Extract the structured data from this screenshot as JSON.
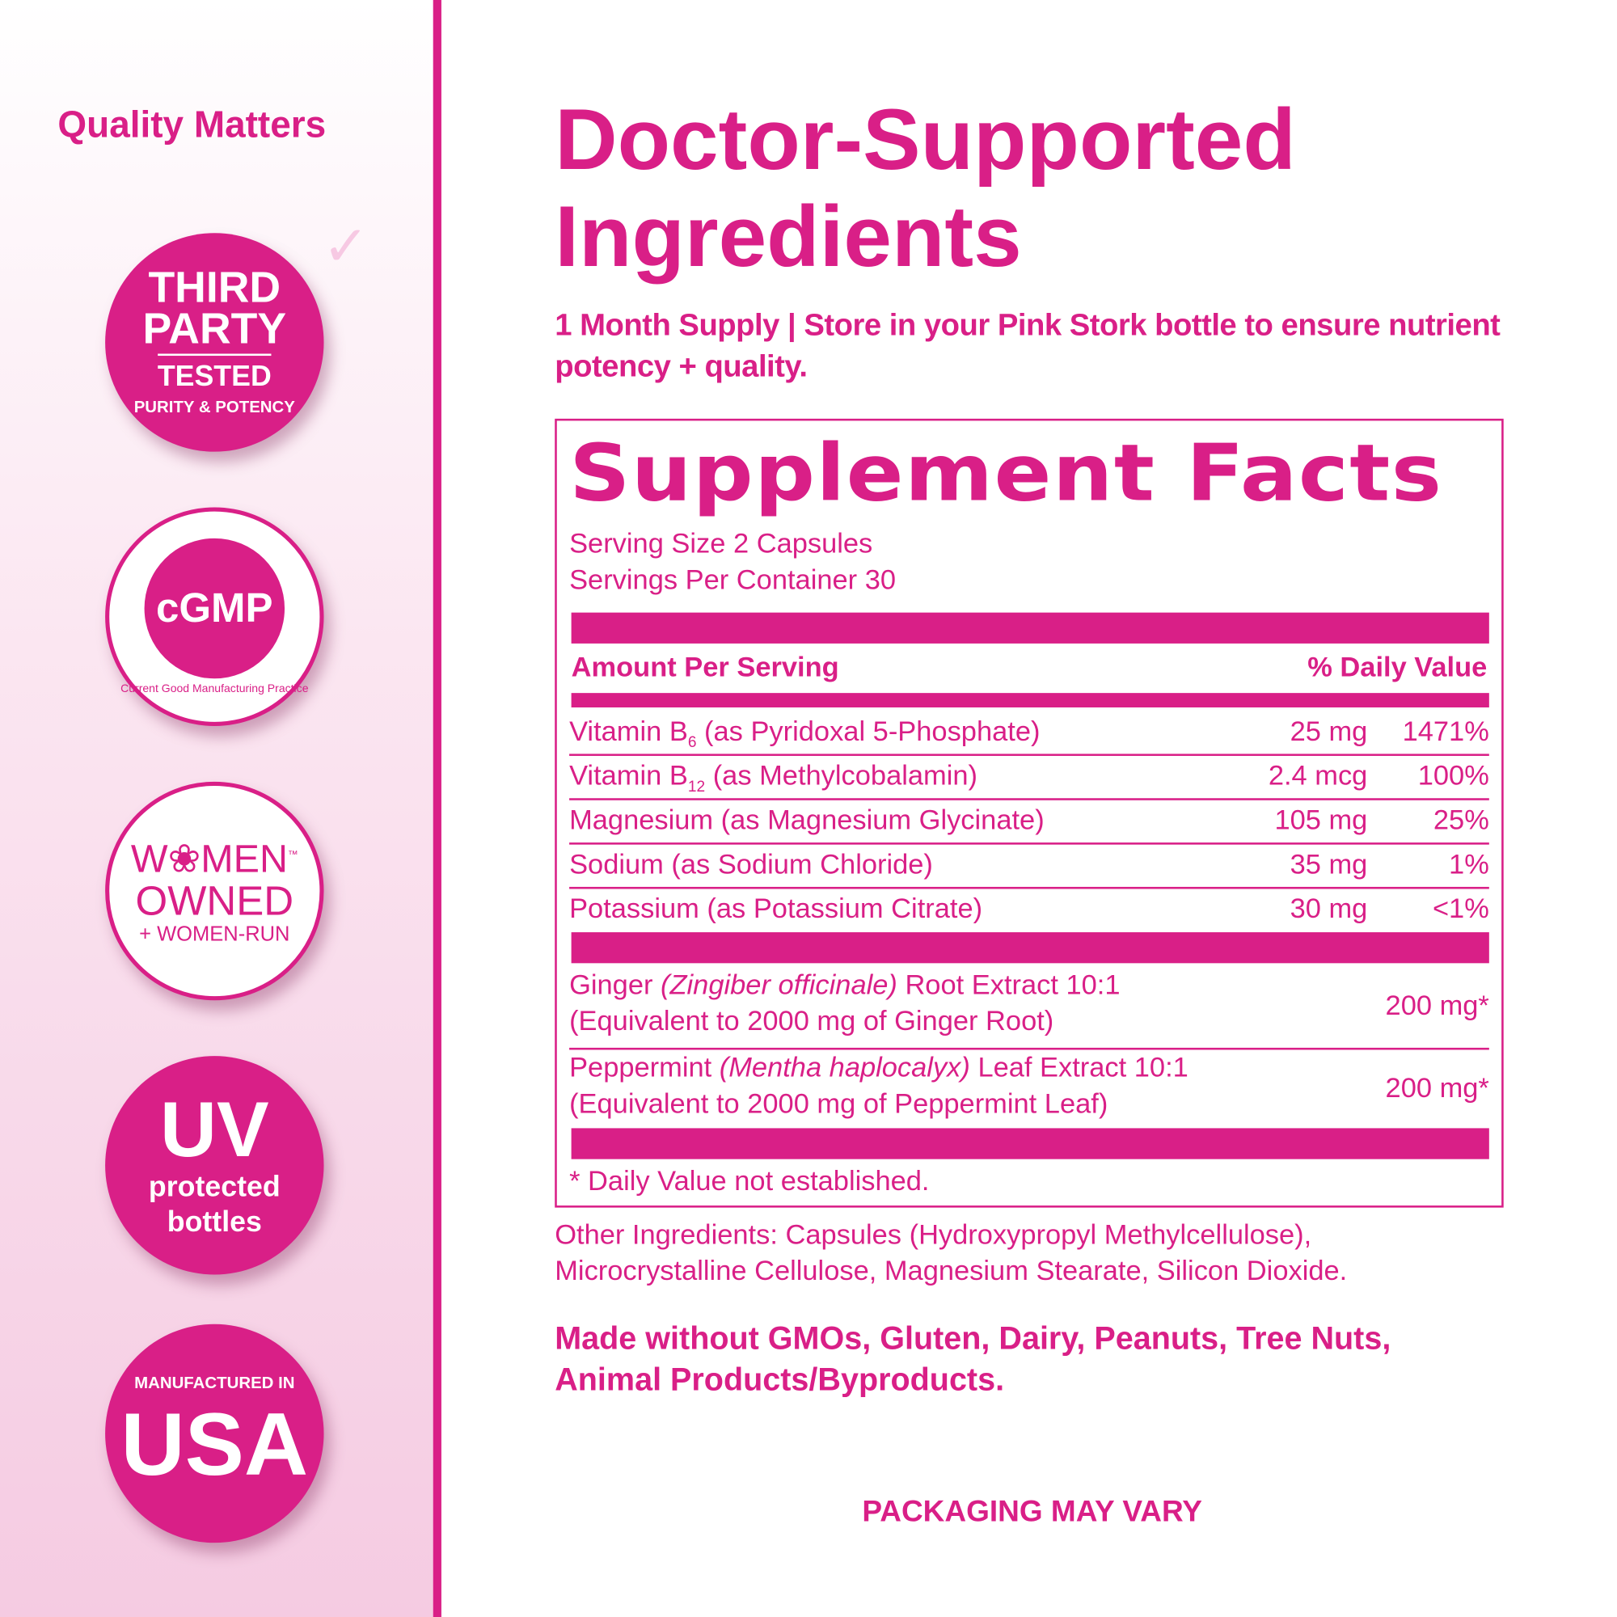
{
  "sidebar": {
    "title": "Quality Matters",
    "badges": {
      "third_party": {
        "line1": "THIRD",
        "line2": "PARTY",
        "line3": "TESTED",
        "ring": "PURITY & POTENCY"
      },
      "cgmp": {
        "center": "cGMP",
        "ring": "Current Good Manufacturing Practice"
      },
      "women": {
        "line1": "W❀MEN",
        "tm": "™",
        "line2": "OWNED",
        "line3": "+ WOMEN-RUN"
      },
      "uv": {
        "line1": "UV",
        "line2": "protected",
        "line3": "bottles"
      },
      "usa": {
        "line1": "MANUFACTURED IN",
        "line2": "USA"
      }
    }
  },
  "main": {
    "title_line1": "Doctor-Supported",
    "title_line2": "Ingredients",
    "subtitle": "1 Month Supply | Store in your Pink Stork bottle to ensure nutrient potency + quality.",
    "facts": {
      "title": "Supplement Facts",
      "serving_size": "Serving Size 2 Capsules",
      "servings_per_container": "Servings Per Container 30",
      "header_amount": "Amount Per Serving",
      "header_dv": "% Daily Value",
      "rows": [
        {
          "name": "Vitamin B",
          "sub": "6",
          "rest": " (as Pyridoxal 5-Phosphate)",
          "amount": "25 mg",
          "dv": "1471%"
        },
        {
          "name": "Vitamin B",
          "sub": "12",
          "rest": " (as Methylcobalamin)",
          "amount": "2.4 mcg",
          "dv": "100%"
        },
        {
          "name": "Magnesium (as Magnesium Glycinate)",
          "amount": "105 mg",
          "dv": "25%"
        },
        {
          "name": "Sodium (as Sodium Chloride)",
          "amount": "35 mg",
          "dv": "1%"
        },
        {
          "name": "Potassium (as Potassium Citrate)",
          "amount": "30 mg",
          "dv": "<1%"
        }
      ],
      "herbs": [
        {
          "pre": "Ginger ",
          "latin": "(Zingiber officinale)",
          "post": " Root Extract 10:1",
          "line2": "(Equivalent to 2000 mg of Ginger Root)",
          "amount": "200 mg*"
        },
        {
          "pre": "Peppermint ",
          "latin": "(Mentha haplocalyx)",
          "post": " Leaf Extract 10:1",
          "line2": "(Equivalent to 2000 mg of Peppermint Leaf)",
          "amount": "200 mg*"
        }
      ],
      "footnote": "* Daily Value not established."
    },
    "other_ingredients_1": "Other Ingredients: Capsules (Hydroxypropyl Methylcellulose),",
    "other_ingredients_2": "Microcrystalline Cellulose, Magnesium Stearate, Silicon Dioxide.",
    "made_without_1": "Made without GMOs, Gluten, Dairy, Peanuts, Tree Nuts,",
    "made_without_2": "Animal Products/Byproducts.",
    "packaging": "PACKAGING MAY VARY"
  },
  "colors": {
    "brand": "#d91f87"
  }
}
